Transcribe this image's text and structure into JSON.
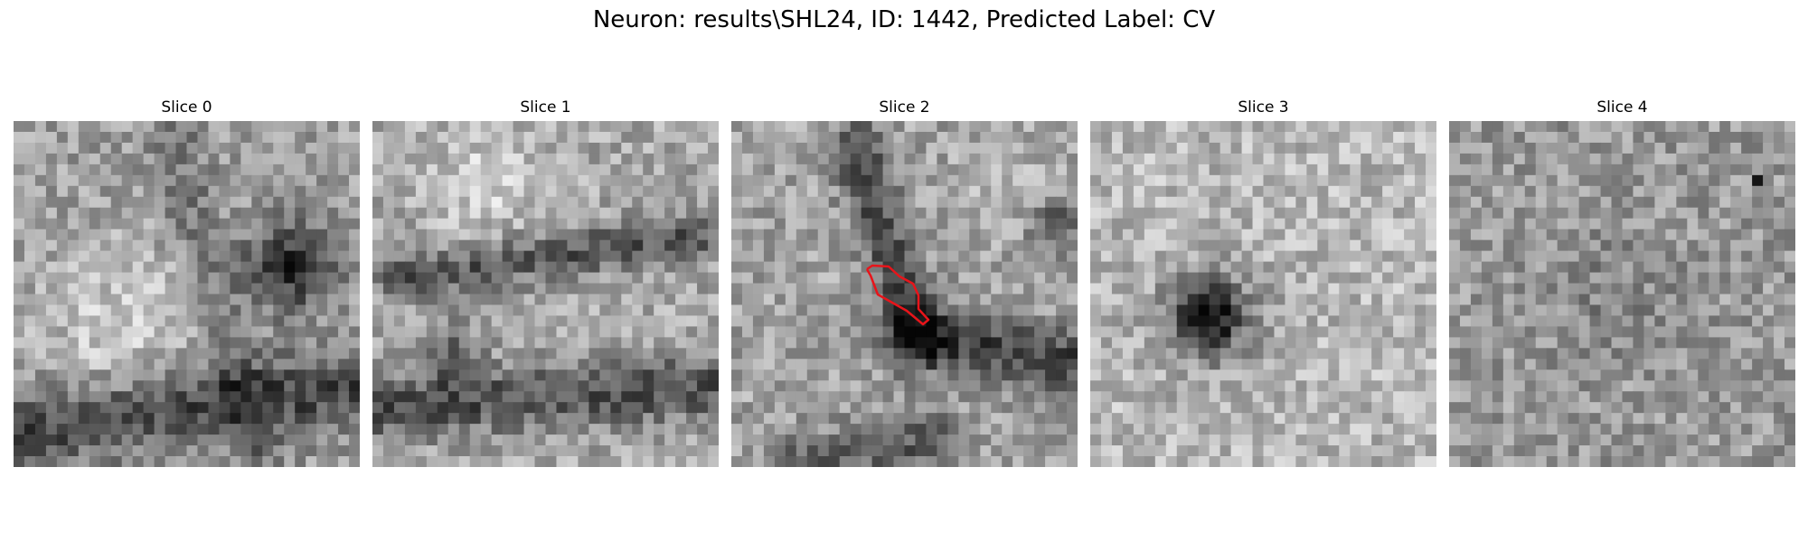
{
  "figure": {
    "title": "Neuron: results\\SHL24, ID: 1442, Predicted Label: CV"
  },
  "panels": [
    {
      "label": "Slice 0",
      "pattern": "dark-blob-right-band-bottom",
      "seed": 11
    },
    {
      "label": "Slice 1",
      "pattern": "diagonal-dark-band",
      "seed": 23
    },
    {
      "label": "Slice 2",
      "pattern": "dark-band-with-roi",
      "seed": 37,
      "roi_outline": true
    },
    {
      "label": "Slice 3",
      "pattern": "dark-spot-left",
      "seed": 41
    },
    {
      "label": "Slice 4",
      "pattern": "uniform-noise",
      "seed": 53
    }
  ],
  "colors": {
    "roi_outline": "#e8141a",
    "background": "#ffffff"
  }
}
